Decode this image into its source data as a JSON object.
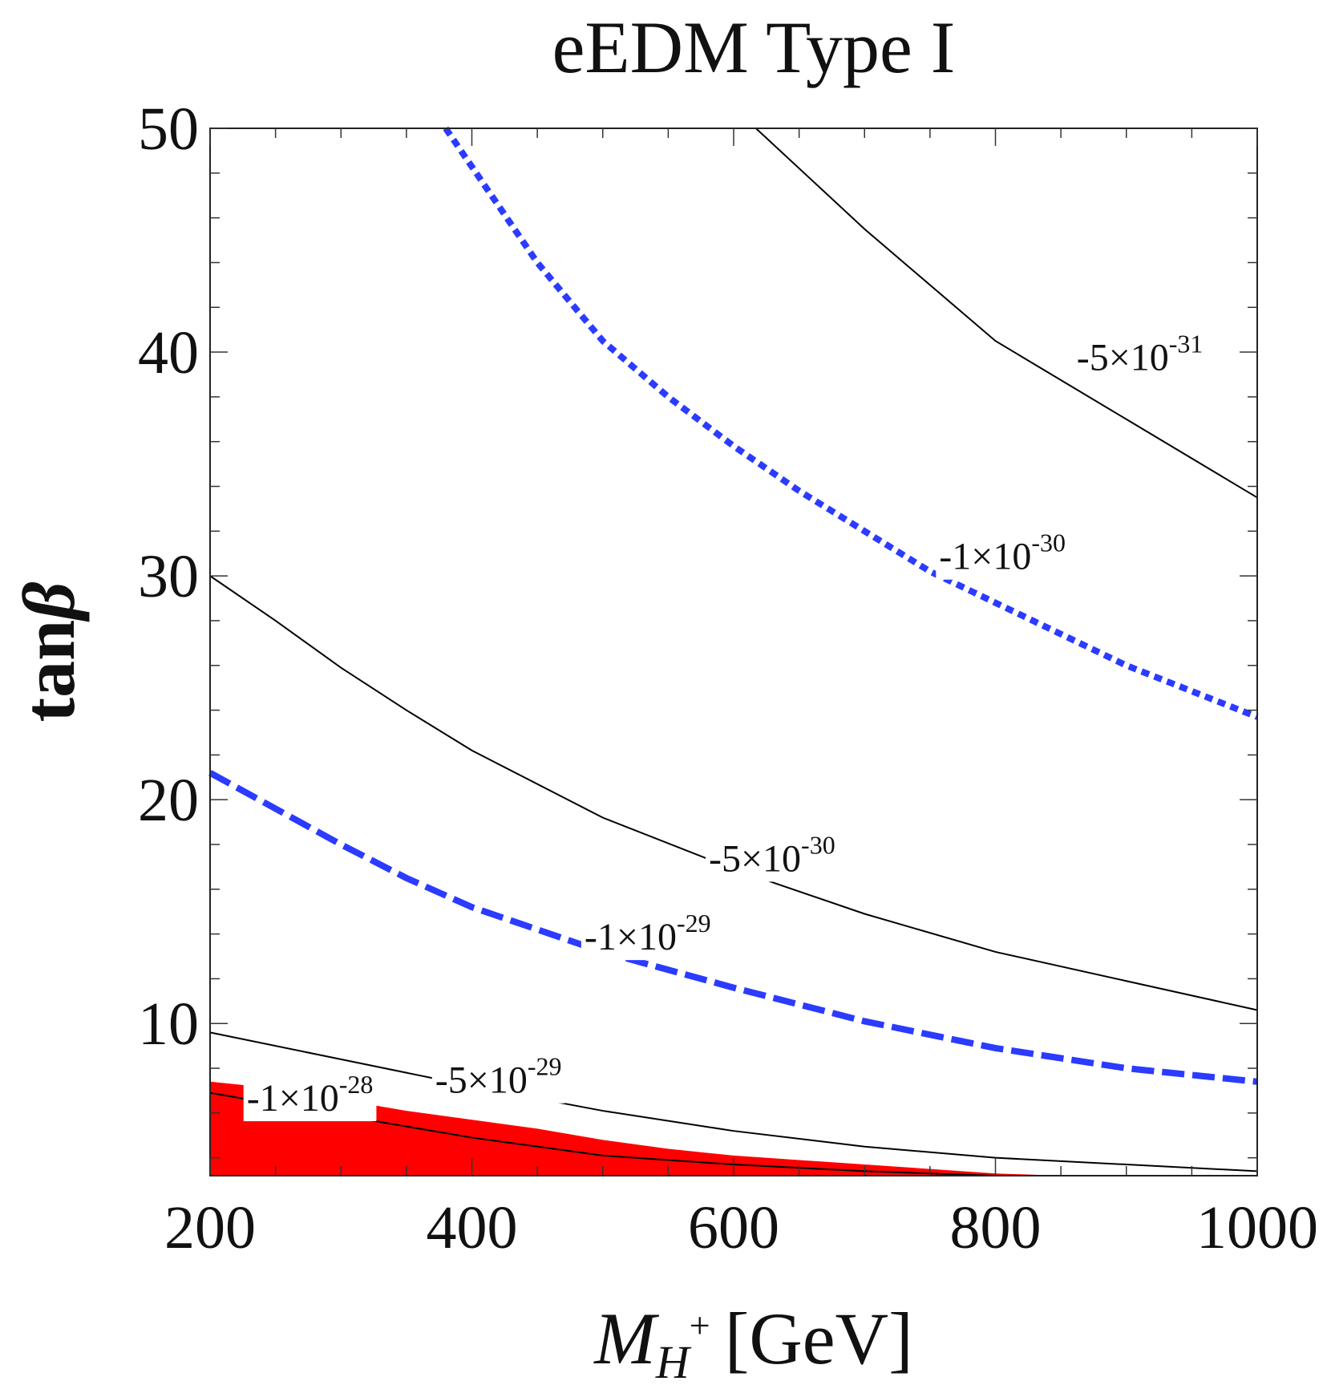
{
  "chart_data": {
    "type": "line",
    "title": "eEDM Type I",
    "xlabel": {
      "main": "M",
      "sub": "H",
      "sup": "+",
      "unit": "[GeV]"
    },
    "ylabel": {
      "main": "tan",
      "greek": "β"
    },
    "xlim": [
      200,
      1000
    ],
    "ylim": [
      3.2,
      50
    ],
    "x_ticks": [
      200,
      400,
      600,
      800,
      1000
    ],
    "x_tick_labels": [
      "200",
      "400",
      "600",
      "800",
      "1000"
    ],
    "y_ticks": [
      10,
      20,
      30,
      40,
      50
    ],
    "y_tick_labels": [
      "10",
      "20",
      "30",
      "40",
      "50"
    ],
    "series": [
      {
        "name": "-5×10^-31",
        "style": "solid",
        "color": "#000000",
        "x": [
          617,
          700,
          800,
          900,
          1000
        ],
        "y": [
          50,
          45.5,
          40.5,
          37,
          33.5
        ],
        "label": {
          "mant": "-5×10",
          "exp": "-31",
          "x": 862,
          "y": 39.2
        }
      },
      {
        "name": "-1×10^-30",
        "style": "dotted",
        "color": "#2b3bff",
        "x": [
          380,
          450,
          500,
          550,
          600,
          650,
          700,
          750,
          800,
          900,
          1000
        ],
        "y": [
          50,
          44,
          40.5,
          38,
          35.8,
          33.8,
          32,
          30.2,
          28.8,
          26,
          23.7
        ],
        "label": {
          "mant": "-1×10",
          "exp": "-30",
          "x": 757,
          "y": 30.3
        }
      },
      {
        "name": "-5×10^-30",
        "style": "solid",
        "color": "#000000",
        "x": [
          200,
          250,
          300,
          350,
          400,
          500,
          600,
          700,
          800,
          900,
          1000
        ],
        "y": [
          30,
          28,
          25.9,
          24,
          22.2,
          19.2,
          16.9,
          14.9,
          13.2,
          11.9,
          10.6
        ],
        "label": {
          "mant": "-5×10",
          "exp": "-30",
          "x": 581,
          "y": 16.8
        }
      },
      {
        "name": "-1×10^-29",
        "style": "dashed",
        "color": "#2b3bff",
        "x": [
          200,
          250,
          300,
          350,
          400,
          500,
          600,
          700,
          800,
          900,
          1000
        ],
        "y": [
          21.2,
          19.6,
          18,
          16.5,
          15.2,
          13.2,
          11.6,
          10.1,
          8.9,
          8,
          7.4
        ],
        "label": {
          "mant": "-1×10",
          "exp": "-29",
          "x": 486,
          "y": 13.3
        }
      },
      {
        "name": "-5×10^-29",
        "style": "solid",
        "color": "#000000",
        "x": [
          200,
          300,
          400,
          500,
          600,
          700,
          800,
          900,
          1000
        ],
        "y": [
          9.6,
          8.4,
          7.2,
          6.1,
          5.2,
          4.5,
          4,
          3.7,
          3.4
        ],
        "label": {
          "mant": "-5×10",
          "exp": "-29",
          "x": 372,
          "y": 6.9
        }
      },
      {
        "name": "-1×10^-28",
        "style": "solid",
        "color": "#000000",
        "x": [
          200,
          300,
          400,
          500,
          600,
          700,
          800
        ],
        "y": [
          6.9,
          5.9,
          4.9,
          4.1,
          3.7,
          3.4,
          3.2
        ],
        "label": {
          "mant": "-1×10",
          "exp": "-28",
          "x": 228,
          "y": 6.1
        }
      }
    ],
    "excluded_region": {
      "color": "#ff0000",
      "x": [
        200,
        250,
        300,
        350,
        400,
        450,
        500,
        550,
        600,
        650,
        700,
        750,
        800,
        850
      ],
      "y": [
        7.4,
        7.1,
        6.6,
        6.1,
        5.7,
        5.3,
        4.8,
        4.4,
        4.1,
        3.9,
        3.7,
        3.5,
        3.3,
        3.2
      ]
    }
  }
}
